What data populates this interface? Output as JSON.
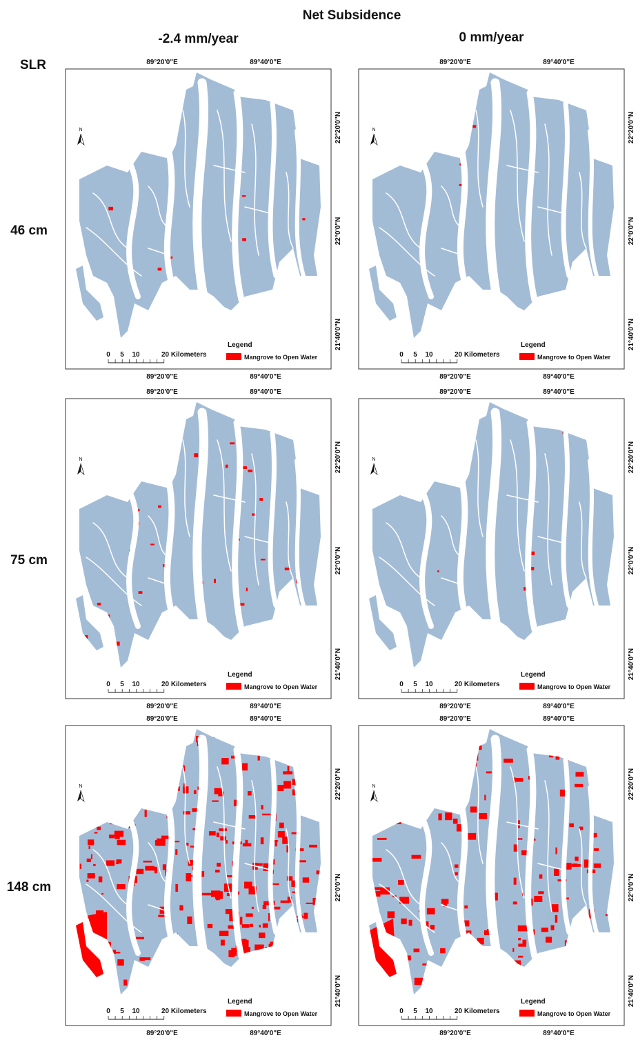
{
  "header": {
    "title": "Net Subsidence",
    "row_axis_label": "SLR"
  },
  "columns": [
    {
      "label": "-2.4 mm/year"
    },
    {
      "label": "0 mm/year"
    }
  ],
  "rows": [
    {
      "label": "46 cm"
    },
    {
      "label": "75 cm"
    },
    {
      "label": "148 cm"
    }
  ],
  "map": {
    "longitude_labels": [
      "89°20'0\"E",
      "89°40'0\"E"
    ],
    "latitude_labels": [
      "22°20'0\"N",
      "22°0'0\"N",
      "21°40'0\"N"
    ],
    "north_label": "N",
    "scale_labels": [
      "0",
      "5",
      "10",
      "20 Kilometers"
    ],
    "legend": {
      "title": "Legend",
      "items": [
        {
          "label": "Mangrove to Open Water",
          "color": "#ff0000"
        }
      ]
    }
  }
}
